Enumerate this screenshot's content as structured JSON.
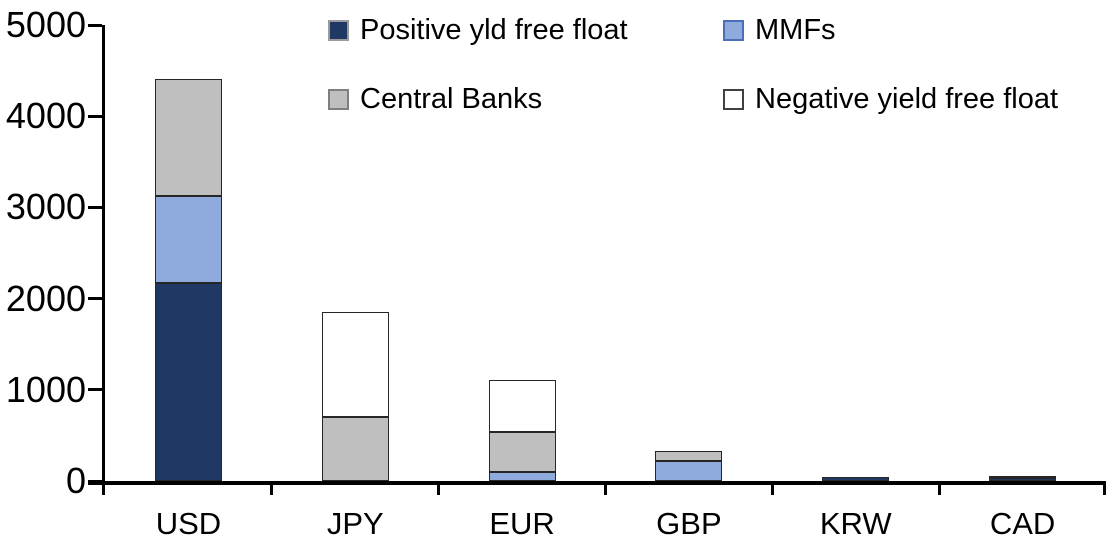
{
  "chart_data": {
    "type": "bar",
    "stacked": true,
    "title": "",
    "xlabel": "",
    "ylabel": "",
    "categories": [
      "USD",
      "JPY",
      "EUR",
      "GBP",
      "KRW",
      "CAD"
    ],
    "series": [
      {
        "name": "Positive yld free float",
        "color": "#1F3864",
        "swatch_border": "#9B9B9B",
        "values": [
          2170,
          0,
          0,
          0,
          45,
          30
        ]
      },
      {
        "name": "MMFs",
        "color": "#8FAADC",
        "swatch_border": "#4B6FB5",
        "values": [
          960,
          0,
          100,
          215,
          0,
          0
        ]
      },
      {
        "name": "Central Banks",
        "color": "#BFBFBF",
        "swatch_border": "#7F7F7F",
        "values": [
          1280,
          700,
          435,
          115,
          0,
          30
        ]
      },
      {
        "name": "Negative yield free float",
        "color": "#FFFFFF",
        "swatch_border": "#404040",
        "values": [
          0,
          1150,
          575,
          0,
          0,
          0
        ]
      }
    ],
    "totals": {
      "USD": 4410,
      "JPY": 1850,
      "EUR": 1110,
      "GBP": 330,
      "KRW": 45,
      "CAD": 60
    },
    "ylim": [
      0,
      5000
    ],
    "yticks": [
      0,
      1000,
      2000,
      3000,
      4000,
      5000
    ],
    "grid": false,
    "legend_position": "top",
    "legend_rows": 2,
    "colors": {
      "axis": "#000000",
      "bar_border": "#262626",
      "background": "#FFFFFF"
    }
  }
}
